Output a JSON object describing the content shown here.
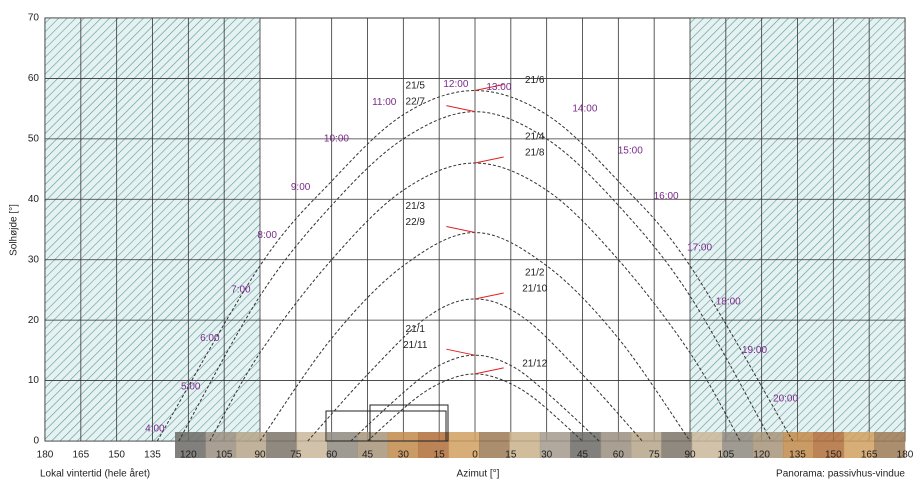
{
  "chart_data": {
    "type": "line",
    "ylabel": "Solhøjde [°]",
    "xlabel": "Azimut [°]",
    "left_note": "Lokal vintertid (hele året)",
    "right_note": "Panorama: passivhus-vindue",
    "xlim": [
      -180,
      180
    ],
    "ylim": [
      0,
      70
    ],
    "xticks": [
      {
        "value": -180,
        "label": "180"
      },
      {
        "value": -165,
        "label": "165"
      },
      {
        "value": -150,
        "label": "150"
      },
      {
        "value": -135,
        "label": "135"
      },
      {
        "value": -120,
        "label": "120"
      },
      {
        "value": -105,
        "label": "105"
      },
      {
        "value": -90,
        "label": "90"
      },
      {
        "value": -75,
        "label": "75"
      },
      {
        "value": -60,
        "label": "60"
      },
      {
        "value": -45,
        "label": "45"
      },
      {
        "value": -30,
        "label": "30"
      },
      {
        "value": -15,
        "label": "15"
      },
      0,
      15,
      30,
      45,
      60,
      75,
      90,
      105,
      120,
      135,
      150,
      165,
      180
    ],
    "yticks": [
      0,
      10,
      20,
      30,
      40,
      50,
      60,
      70
    ],
    "grid": true,
    "hatched": [
      [
        -180,
        -90
      ],
      [
        90,
        180
      ]
    ],
    "color": "#333333",
    "series": [
      {
        "labels": [
          "21/6"
        ],
        "x": [
          -133,
          -90,
          -60,
          -30,
          0,
          30,
          60,
          90,
          133
        ],
        "values": [
          0,
          29,
          43,
          54,
          58,
          54,
          43,
          29,
          0
        ]
      },
      {
        "labels": [
          "21/5",
          "22/7"
        ],
        "x": [
          -124,
          -90,
          -60,
          -30,
          0,
          30,
          60,
          90,
          124
        ],
        "values": [
          0,
          24,
          39,
          50,
          54.5,
          50,
          39,
          24,
          0
        ]
      },
      {
        "labels": [
          "21/4",
          "21/8"
        ],
        "x": [
          -111,
          -90,
          -60,
          -30,
          0,
          30,
          60,
          90,
          111
        ],
        "values": [
          0,
          14.6,
          30,
          41.5,
          46,
          41.5,
          30,
          14.6,
          0
        ]
      },
      {
        "labels": [
          "21/3",
          "22/9"
        ],
        "x": [
          -90,
          -60,
          -30,
          0,
          30,
          60,
          90
        ],
        "values": [
          0,
          17,
          29,
          34.5,
          29,
          17,
          0
        ]
      },
      {
        "labels": [
          "21/2",
          "21/10"
        ],
        "x": [
          -70,
          -45,
          -20,
          0,
          20,
          45,
          70
        ],
        "values": [
          0,
          11,
          20.5,
          23.5,
          20.5,
          11,
          0
        ]
      },
      {
        "labels": [
          "21/1",
          "21/11"
        ],
        "x": [
          -52,
          -30,
          -15,
          0,
          15,
          30,
          52
        ],
        "values": [
          0,
          8,
          12.5,
          14.2,
          12.5,
          8,
          0
        ]
      },
      {
        "labels": [
          "21/12"
        ],
        "x": [
          -45,
          -25,
          -12,
          0,
          12,
          25,
          45
        ],
        "values": [
          0,
          7,
          10,
          11.1,
          10,
          7,
          0
        ]
      }
    ],
    "hour_color": "#7a2a8a",
    "annotations": [
      {
        "text": "4:00",
        "x": -134,
        "y": 2
      },
      {
        "text": "5:00",
        "x": -119,
        "y": 9
      },
      {
        "text": "6:00",
        "x": -111,
        "y": 17
      },
      {
        "text": "7:00",
        "x": -98,
        "y": 25
      },
      {
        "text": "8:00",
        "x": -87,
        "y": 34
      },
      {
        "text": "9:00",
        "x": -73,
        "y": 42
      },
      {
        "text": "10:00",
        "x": -58,
        "y": 50
      },
      {
        "text": "11:00",
        "x": -38,
        "y": 56
      },
      {
        "text": "12:00",
        "x": -8,
        "y": 59
      },
      {
        "text": "13:00",
        "x": 10,
        "y": 58.5
      },
      {
        "text": "14:00",
        "x": 46,
        "y": 55
      },
      {
        "text": "15:00",
        "x": 65,
        "y": 48
      },
      {
        "text": "16:00",
        "x": 80,
        "y": 40.5
      },
      {
        "text": "17:00",
        "x": 94,
        "y": 32
      },
      {
        "text": "18:00",
        "x": 106,
        "y": 23
      },
      {
        "text": "19:00",
        "x": 117,
        "y": 15
      },
      {
        "text": "20:00",
        "x": 130,
        "y": 7
      }
    ]
  }
}
